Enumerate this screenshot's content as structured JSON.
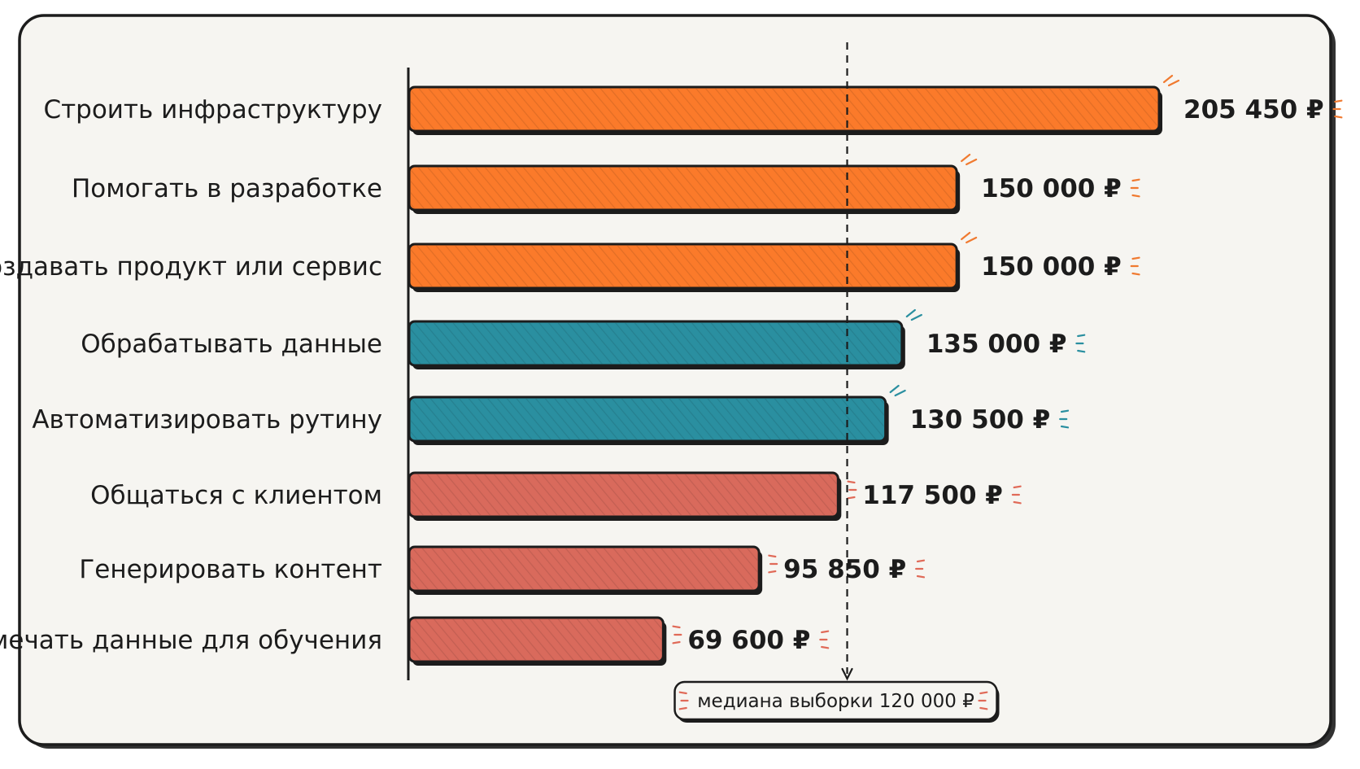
{
  "chart_data": {
    "type": "bar",
    "orientation": "horizontal",
    "categories": [
      "Строить инфраструктуру",
      "Помогать в разработке",
      "Создавать продукт или сервис",
      "Обрабатывать данные",
      "Автоматизировать рутину",
      "Общаться с клиентом",
      "Генерировать контент",
      "Размечать данные для обучения"
    ],
    "values": [
      205450,
      150000,
      150000,
      135000,
      130500,
      117500,
      95850,
      69600
    ],
    "value_labels": [
      "205 450 ₽",
      "150 000 ₽",
      "150 000 ₽",
      "135 000 ₽",
      "130 500 ₽",
      "117 500 ₽",
      "95 850 ₽",
      "69 600 ₽"
    ],
    "bar_colors": [
      "#fb7a2a",
      "#fb7a2a",
      "#fb7a2a",
      "#2a8fa0",
      "#2a8fa0",
      "#d96a5c",
      "#d96a5c",
      "#d96a5c"
    ],
    "accent_colors": [
      "#f07a30",
      "#f07a30",
      "#f07a30",
      "#2a8fa0",
      "#2a8fa0",
      "#e06a58",
      "#e06a58",
      "#e06a58"
    ],
    "xlim": [
      0,
      205450
    ],
    "median": {
      "value": 120000,
      "label": "медиана выборки 120 000 ₽"
    },
    "grid": false,
    "legend": "none",
    "title": "",
    "xlabel": "",
    "ylabel": ""
  },
  "colors": {
    "background": "#f6f5f1",
    "outline": "#1c1c1c"
  }
}
